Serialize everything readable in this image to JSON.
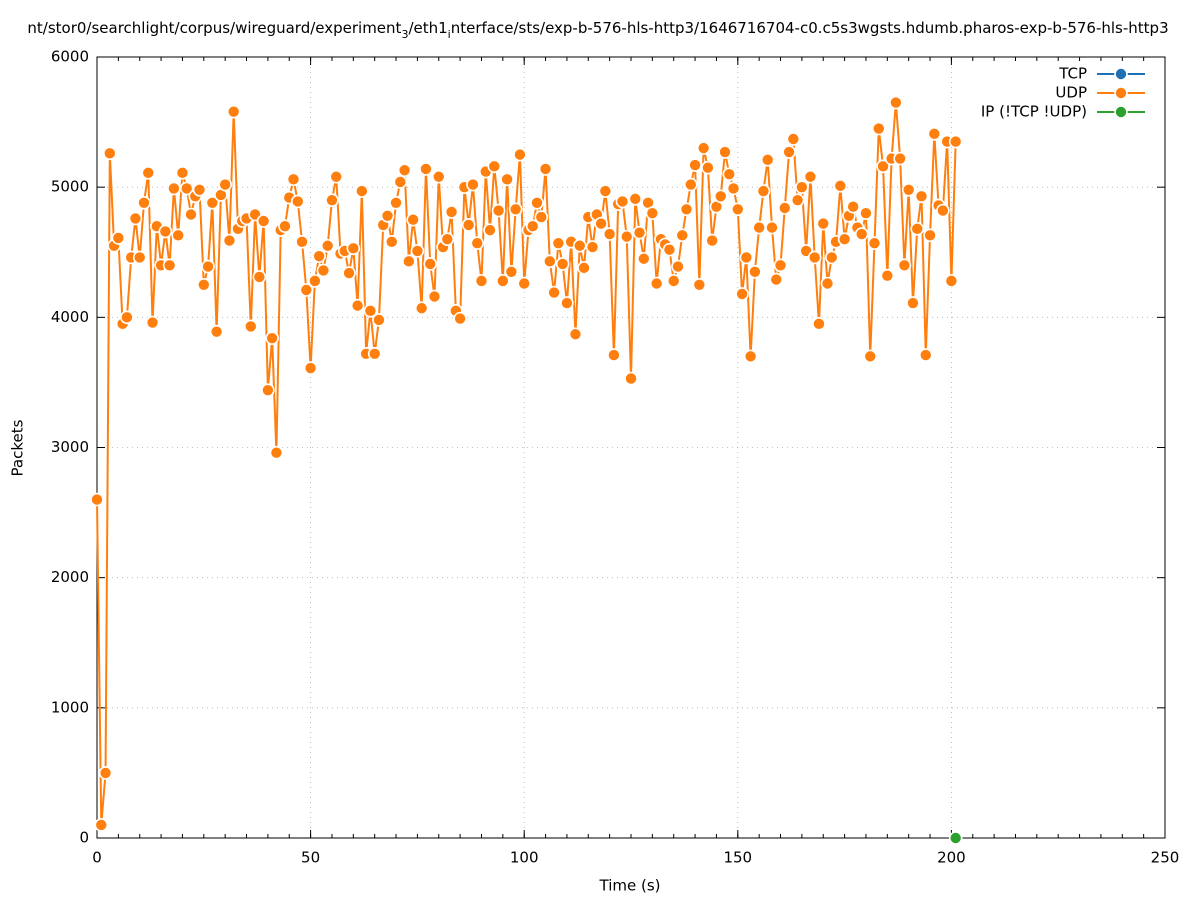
{
  "chart_data": {
    "type": "line",
    "title": [
      {
        "text": "nt/stor0/searchlight/corpus/wireguard/experiment",
        "sub": false
      },
      {
        "text": "3",
        "sub": true
      },
      {
        "text": "/eth1",
        "sub": false
      },
      {
        "text": "i",
        "sub": true
      },
      {
        "text": "nterface/sts/exp-b-576-hls-http3/1646716704-c0.c5s3wgsts.hdumb.pharos-exp-b-576-hls-http3",
        "sub": false
      }
    ],
    "xlabel": "Time (s)",
    "ylabel": "Packets",
    "xlim": [
      0,
      250
    ],
    "xticks": [
      0,
      50,
      100,
      150,
      200,
      250
    ],
    "x_minor_step": 5,
    "ylim": [
      0,
      6000
    ],
    "yticks": [
      0,
      1000,
      2000,
      3000,
      4000,
      5000,
      6000
    ],
    "grid": true,
    "legend": "top-right",
    "series": [
      {
        "name": "TCP",
        "color": "#1f6fb4",
        "x": [],
        "values": []
      },
      {
        "name": "UDP",
        "color": "#ff7f0e",
        "x": [
          0,
          1,
          2,
          3,
          4,
          5,
          6,
          7,
          8,
          9,
          10,
          11,
          12,
          13,
          14,
          15,
          16,
          17,
          18,
          19,
          20,
          21,
          22,
          23,
          24,
          25,
          26,
          27,
          28,
          29,
          30,
          31,
          32,
          33,
          34,
          35,
          36,
          37,
          38,
          39,
          40,
          41,
          42,
          43,
          44,
          45,
          46,
          47,
          48,
          49,
          50,
          51,
          52,
          53,
          54,
          55,
          56,
          57,
          58,
          59,
          60,
          61,
          62,
          63,
          64,
          65,
          66,
          67,
          68,
          69,
          70,
          71,
          72,
          73,
          74,
          75,
          76,
          77,
          78,
          79,
          80,
          81,
          82,
          83,
          84,
          85,
          86,
          87,
          88,
          89,
          90,
          91,
          92,
          93,
          94,
          95,
          96,
          97,
          98,
          99,
          100,
          101,
          102,
          103,
          104,
          105,
          106,
          107,
          108,
          109,
          110,
          111,
          112,
          113,
          114,
          115,
          116,
          117,
          118,
          119,
          120,
          121,
          122,
          123,
          124,
          125,
          126,
          127,
          128,
          129,
          130,
          131,
          132,
          133,
          134,
          135,
          136,
          137,
          138,
          139,
          140,
          141,
          142,
          143,
          144,
          145,
          146,
          147,
          148,
          149,
          150,
          151,
          152,
          153,
          154,
          155,
          156,
          157,
          158,
          159,
          160,
          161,
          162,
          163,
          164,
          165,
          166,
          167,
          168,
          169,
          170,
          171,
          172,
          173,
          174,
          175,
          176,
          177,
          178,
          179,
          180,
          181,
          182,
          183,
          184,
          185,
          186,
          187,
          188,
          189,
          190,
          191,
          192,
          193,
          194,
          195,
          196,
          197,
          198,
          199,
          200,
          201
        ],
        "values": [
          2600,
          100,
          500,
          5260,
          4550,
          4610,
          3950,
          4000,
          4460,
          4760,
          4460,
          4880,
          5110,
          3960,
          4700,
          4400,
          4660,
          4400,
          4990,
          4630,
          5110,
          4990,
          4790,
          4930,
          4980,
          4250,
          4390,
          4880,
          3890,
          4940,
          5020,
          4590,
          5580,
          4680,
          4740,
          4760,
          3930,
          4790,
          4310,
          4740,
          3440,
          3840,
          2960,
          4670,
          4700,
          4920,
          5060,
          4890,
          4580,
          4210,
          3610,
          4280,
          4470,
          4360,
          4550,
          4900,
          5080,
          4490,
          4510,
          4340,
          4530,
          4090,
          4970,
          3720,
          4050,
          3720,
          3980,
          4710,
          4780,
          4580,
          4880,
          5040,
          5130,
          4430,
          4750,
          4510,
          4070,
          5140,
          4410,
          4160,
          5080,
          4540,
          4600,
          4810,
          4050,
          3990,
          5000,
          4710,
          5020,
          4570,
          4280,
          5120,
          4670,
          5160,
          4820,
          4280,
          5060,
          4350,
          4830,
          5250,
          4260,
          4670,
          4700,
          4880,
          4770,
          5140,
          4430,
          4190,
          4570,
          4410,
          4110,
          4580,
          3870,
          4550,
          4380,
          4770,
          4540,
          4790,
          4720,
          4970,
          4640,
          3710,
          4870,
          4890,
          4620,
          3530,
          4910,
          4650,
          4450,
          4880,
          4800,
          4260,
          4600,
          4560,
          4520,
          4280,
          4390,
          4630,
          4830,
          5020,
          5170,
          4250,
          5300,
          5150,
          4590,
          4850,
          4930,
          5270,
          5100,
          4990,
          4830,
          4180,
          4460,
          3700,
          4350,
          4690,
          4970,
          5210,
          4690,
          4290,
          4400,
          4840,
          5270,
          5370,
          4900,
          5000,
          4510,
          5080,
          4460,
          3950,
          4720,
          4260,
          4460,
          4580,
          5010,
          4600,
          4780,
          4850,
          4690,
          4640,
          4800,
          3700,
          4570,
          5450,
          5160,
          4320,
          5220,
          5650,
          5220,
          4400,
          4980,
          4110,
          4680,
          4930,
          3710,
          4630,
          5410,
          4860,
          4820,
          5350,
          4280,
          5350
        ]
      },
      {
        "name": "IP (!TCP  !UDP)",
        "color": "#2ca02c",
        "x": [
          201
        ],
        "values": [
          0
        ]
      }
    ]
  }
}
